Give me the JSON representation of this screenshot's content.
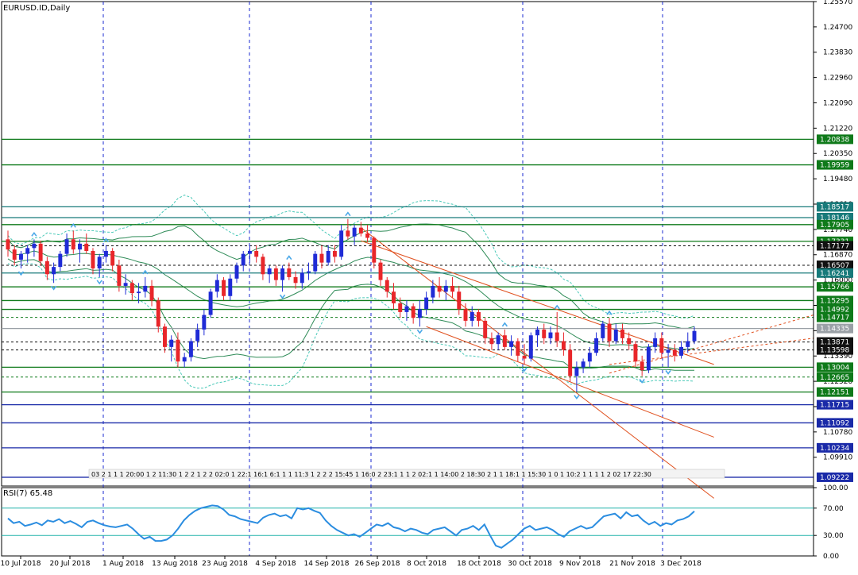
{
  "chart_title": "EURUSD.ID,Daily",
  "colors": {
    "up_candle": "#1f2bd6",
    "down_candle": "#e8262a",
    "green_level": "#0f7a1a",
    "teal_level": "#187a7a",
    "black_level": "#111111",
    "blue_level": "#1a2aa8",
    "channel_line": "#e0501e",
    "bands_inner": "#2e8b57",
    "bands_outer": "#49c9b8",
    "rsi_line": "#2b8de0",
    "rsi_levels": "#20b2aa",
    "grid_vertical": "#1a2ad0",
    "axis": "#000000",
    "fractal_marker": "#4aa8e8"
  },
  "chart_data": [
    {
      "type": "candlestick",
      "symbol": "EURUSD.ID",
      "timeframe": "Daily",
      "ylim": [
        1.0892,
        1.2557
      ],
      "y_ticks": [
        "1.25570",
        "1.24700",
        "1.23830",
        "1.22960",
        "1.22090",
        "1.21220",
        "1.20350",
        "1.19480",
        "1.18610",
        "1.17740",
        "1.16870",
        "1.16000",
        "1.15130",
        "1.14260",
        "1.13390",
        "1.12520",
        "1.11650",
        "1.10780",
        "1.09910"
      ],
      "x_labels": [
        "10 Jul 2018",
        "20 Jul 2018",
        "1 Aug 2018",
        "13 Aug 2018",
        "23 Aug 2018",
        "4 Sep 2018",
        "14 Sep 2018",
        "26 Sep 2018",
        "8 Oct 2018",
        "18 Oct 2018",
        "30 Oct 2018",
        "9 Nov 2018",
        "21 Nov 2018",
        "3 Dec 2018"
      ],
      "grid": true,
      "candles": [
        [
          1.174,
          1.177,
          1.168,
          1.1705
        ],
        [
          1.1705,
          1.172,
          1.165,
          1.167
        ],
        [
          1.167,
          1.17,
          1.164,
          1.169
        ],
        [
          1.169,
          1.172,
          1.166,
          1.171
        ],
        [
          1.171,
          1.174,
          1.168,
          1.1725
        ],
        [
          1.1725,
          1.1735,
          1.165,
          1.1665
        ],
        [
          1.1665,
          1.168,
          1.16,
          1.162
        ],
        [
          1.162,
          1.166,
          1.159,
          1.1645
        ],
        [
          1.1645,
          1.17,
          1.163,
          1.169
        ],
        [
          1.169,
          1.176,
          1.168,
          1.174
        ],
        [
          1.174,
          1.177,
          1.169,
          1.1705
        ],
        [
          1.1705,
          1.174,
          1.166,
          1.1725
        ],
        [
          1.1725,
          1.176,
          1.169,
          1.17
        ],
        [
          1.17,
          1.171,
          1.162,
          1.164
        ],
        [
          1.164,
          1.169,
          1.161,
          1.168
        ],
        [
          1.168,
          1.172,
          1.166,
          1.17
        ],
        [
          1.17,
          1.171,
          1.163,
          1.165
        ],
        [
          1.165,
          1.167,
          1.156,
          1.158
        ],
        [
          1.158,
          1.162,
          1.155,
          1.159
        ],
        [
          1.159,
          1.16,
          1.153,
          1.1555
        ],
        [
          1.1555,
          1.159,
          1.152,
          1.156
        ],
        [
          1.156,
          1.161,
          1.154,
          1.158
        ],
        [
          1.158,
          1.16,
          1.151,
          1.153
        ],
        [
          1.153,
          1.154,
          1.142,
          1.144
        ],
        [
          1.144,
          1.145,
          1.135,
          1.137
        ],
        [
          1.137,
          1.141,
          1.132,
          1.1395
        ],
        [
          1.1395,
          1.142,
          1.13,
          1.132
        ],
        [
          1.132,
          1.135,
          1.13,
          1.1335
        ],
        [
          1.1335,
          1.14,
          1.132,
          1.139
        ],
        [
          1.139,
          1.145,
          1.137,
          1.143
        ],
        [
          1.143,
          1.15,
          1.141,
          1.148
        ],
        [
          1.148,
          1.157,
          1.147,
          1.156
        ],
        [
          1.156,
          1.162,
          1.154,
          1.16
        ],
        [
          1.16,
          1.161,
          1.153,
          1.1545
        ],
        [
          1.1545,
          1.162,
          1.153,
          1.1605
        ],
        [
          1.1605,
          1.166,
          1.159,
          1.165
        ],
        [
          1.165,
          1.17,
          1.163,
          1.169
        ],
        [
          1.169,
          1.172,
          1.166,
          1.17
        ],
        [
          1.17,
          1.172,
          1.166,
          1.168
        ],
        [
          1.168,
          1.169,
          1.16,
          1.162
        ],
        [
          1.162,
          1.165,
          1.159,
          1.164
        ],
        [
          1.164,
          1.165,
          1.158,
          1.16
        ],
        [
          1.16,
          1.165,
          1.156,
          1.164
        ],
        [
          1.164,
          1.166,
          1.16,
          1.161
        ],
        [
          1.161,
          1.163,
          1.157,
          1.159
        ],
        [
          1.159,
          1.164,
          1.157,
          1.1625
        ],
        [
          1.1625,
          1.166,
          1.16,
          1.163
        ],
        [
          1.163,
          1.17,
          1.162,
          1.169
        ],
        [
          1.169,
          1.172,
          1.164,
          1.166
        ],
        [
          1.166,
          1.172,
          1.165,
          1.17
        ],
        [
          1.17,
          1.172,
          1.166,
          1.168
        ],
        [
          1.168,
          1.179,
          1.167,
          1.177
        ],
        [
          1.177,
          1.181,
          1.174,
          1.175
        ],
        [
          1.175,
          1.179,
          1.172,
          1.178
        ],
        [
          1.178,
          1.18,
          1.175,
          1.176
        ],
        [
          1.176,
          1.179,
          1.173,
          1.1745
        ],
        [
          1.1745,
          1.175,
          1.164,
          1.166
        ],
        [
          1.166,
          1.167,
          1.158,
          1.16
        ],
        [
          1.16,
          1.161,
          1.154,
          1.156
        ],
        [
          1.156,
          1.159,
          1.15,
          1.152
        ],
        [
          1.152,
          1.154,
          1.147,
          1.149
        ],
        [
          1.149,
          1.153,
          1.146,
          1.151
        ],
        [
          1.151,
          1.152,
          1.145,
          1.147
        ],
        [
          1.147,
          1.153,
          1.144,
          1.15
        ],
        [
          1.15,
          1.156,
          1.148,
          1.154
        ],
        [
          1.154,
          1.16,
          1.152,
          1.158
        ],
        [
          1.158,
          1.161,
          1.154,
          1.156
        ],
        [
          1.156,
          1.16,
          1.153,
          1.158
        ],
        [
          1.158,
          1.161,
          1.154,
          1.156
        ],
        [
          1.156,
          1.158,
          1.148,
          1.15
        ],
        [
          1.15,
          1.152,
          1.144,
          1.146
        ],
        [
          1.146,
          1.151,
          1.144,
          1.149
        ],
        [
          1.149,
          1.15,
          1.144,
          1.146
        ],
        [
          1.146,
          1.147,
          1.138,
          1.14
        ],
        [
          1.14,
          1.142,
          1.136,
          1.138
        ],
        [
          1.138,
          1.142,
          1.136,
          1.141
        ],
        [
          1.141,
          1.143,
          1.136,
          1.137
        ],
        [
          1.137,
          1.141,
          1.134,
          1.139
        ],
        [
          1.139,
          1.14,
          1.132,
          1.134
        ],
        [
          1.134,
          1.138,
          1.131,
          1.133
        ],
        [
          1.133,
          1.142,
          1.132,
          1.141
        ],
        [
          1.141,
          1.144,
          1.137,
          1.143
        ],
        [
          1.143,
          1.145,
          1.138,
          1.14
        ],
        [
          1.14,
          1.144,
          1.138,
          1.142
        ],
        [
          1.142,
          1.149,
          1.137,
          1.139
        ],
        [
          1.139,
          1.142,
          1.134,
          1.136
        ],
        [
          1.136,
          1.138,
          1.125,
          1.127
        ],
        [
          1.127,
          1.132,
          1.1215,
          1.13
        ],
        [
          1.13,
          1.133,
          1.128,
          1.132
        ],
        [
          1.132,
          1.137,
          1.13,
          1.135
        ],
        [
          1.135,
          1.142,
          1.134,
          1.14
        ],
        [
          1.14,
          1.146,
          1.139,
          1.145
        ],
        [
          1.145,
          1.147,
          1.137,
          1.139
        ],
        [
          1.139,
          1.145,
          1.138,
          1.143
        ],
        [
          1.143,
          1.145,
          1.138,
          1.14
        ],
        [
          1.14,
          1.142,
          1.136,
          1.138
        ],
        [
          1.138,
          1.139,
          1.13,
          1.132
        ],
        [
          1.132,
          1.134,
          1.127,
          1.129
        ],
        [
          1.129,
          1.138,
          1.128,
          1.137
        ],
        [
          1.137,
          1.142,
          1.135,
          1.14
        ],
        [
          1.14,
          1.142,
          1.133,
          1.135
        ],
        [
          1.135,
          1.138,
          1.13,
          1.136
        ],
        [
          1.136,
          1.138,
          1.132,
          1.134
        ],
        [
          1.134,
          1.139,
          1.133,
          1.137
        ],
        [
          1.137,
          1.142,
          1.135,
          1.139
        ],
        [
          1.139,
          1.144,
          1.138,
          1.1425
        ]
      ],
      "horizontal_levels": [
        {
          "value": 1.20838,
          "label": "1.20838",
          "style": "green",
          "dashed": false
        },
        {
          "value": 1.19959,
          "label": "1.19959",
          "style": "green",
          "dashed": false
        },
        {
          "value": 1.18517,
          "label": "1.18517",
          "style": "teal",
          "dashed": false
        },
        {
          "value": 1.18146,
          "label": "1.18146",
          "style": "teal",
          "dashed": false
        },
        {
          "value": 1.17905,
          "label": "1.17905",
          "style": "green",
          "dashed": false
        },
        {
          "value": 1.17331,
          "label": "1.17331",
          "style": "green",
          "dashed": false
        },
        {
          "value": 1.17177,
          "label": "1.17177",
          "style": "black",
          "dashed": true
        },
        {
          "value": 1.16507,
          "label": "1.16507",
          "style": "black",
          "dashed": true
        },
        {
          "value": 1.16241,
          "label": "1.16241",
          "style": "teal",
          "dashed": false
        },
        {
          "value": 1.15766,
          "label": "1.15766",
          "style": "green",
          "dashed": false
        },
        {
          "value": 1.15295,
          "label": "1.15295",
          "style": "green",
          "dashed": false
        },
        {
          "value": 1.14992,
          "label": "1.14992",
          "style": "green",
          "dashed": false
        },
        {
          "value": 1.14717,
          "label": "1.14717",
          "style": "green",
          "dashed": true
        },
        {
          "value": 1.14335,
          "label": "1.14335",
          "style": "grey",
          "dashed": false
        },
        {
          "value": 1.13871,
          "label": "1.13871",
          "style": "black",
          "dashed": true
        },
        {
          "value": 1.13598,
          "label": "1.13598",
          "style": "black",
          "dashed": true
        },
        {
          "value": 1.13004,
          "label": "1.13004",
          "style": "green",
          "dashed": false
        },
        {
          "value": 1.12665,
          "label": "1.12665",
          "style": "green",
          "dashed": true
        },
        {
          "value": 1.12151,
          "label": "1.12151",
          "style": "green",
          "dashed": false
        },
        {
          "value": 1.11715,
          "label": "1.11715",
          "style": "blue",
          "dashed": false
        },
        {
          "value": 1.11092,
          "label": "1.11092",
          "style": "blue",
          "dashed": false
        },
        {
          "value": 1.10234,
          "label": "1.10234",
          "style": "blue",
          "dashed": false
        },
        {
          "value": 1.09222,
          "label": "1.09222",
          "style": "blue",
          "dashed": false
        }
      ],
      "partial_right_labels": [
        "1.1600",
        "1.12520"
      ],
      "channel_lines": [
        {
          "from": [
            54,
            1.178
          ],
          "to": [
            108,
            1.085
          ]
        },
        {
          "from": [
            54,
            1.1735
          ],
          "to": [
            108,
            1.131
          ]
        },
        {
          "from": [
            64,
            1.144
          ],
          "to": [
            108,
            1.106
          ]
        }
      ],
      "time_strip": "03 2 1 1 1 20:00 1 2 11:30 1 2 2 1 2 2 02:0 1 22:1 16:1 6:1 1 1 11:3 1 2 2 2 15:45 1 16:0 2 23:1 1 1 2 02:1 1 14:00 2 18:30 2 1 1 18:1 1 15:30 1 0 1 10:2 1 1 1 1 2 02 17 22:30"
    },
    {
      "type": "line",
      "name": "RSI(7)",
      "label": "RSI(7) 65.48",
      "ylim": [
        0,
        100
      ],
      "y_ticks": [
        "100.00",
        "70.00",
        "30.00",
        "0.00"
      ],
      "levels": [
        70,
        30
      ],
      "values": [
        55,
        48,
        50,
        44,
        46,
        49,
        45,
        52,
        50,
        54,
        48,
        51,
        47,
        42,
        50,
        52,
        48,
        45,
        43,
        42,
        44,
        46,
        40,
        32,
        25,
        28,
        22,
        22,
        24,
        30,
        40,
        52,
        60,
        66,
        70,
        72,
        74,
        73,
        68,
        60,
        58,
        54,
        52,
        50,
        48,
        56,
        60,
        62,
        58,
        60,
        55,
        70,
        68,
        70,
        66,
        63,
        52,
        44,
        38,
        34,
        30,
        32,
        28,
        34,
        40,
        46,
        44,
        48,
        42,
        40,
        36,
        40,
        38,
        34,
        32,
        38,
        40,
        42,
        36,
        30,
        38,
        40,
        44,
        38,
        46,
        30,
        15,
        12,
        18,
        24,
        32,
        40,
        44,
        38,
        40,
        42,
        38,
        32,
        28,
        36,
        40,
        44,
        40,
        42,
        50,
        58,
        60,
        62,
        55,
        64,
        58,
        60,
        52,
        46,
        50,
        44,
        48,
        46,
        52,
        54,
        58,
        65.48
      ]
    }
  ]
}
